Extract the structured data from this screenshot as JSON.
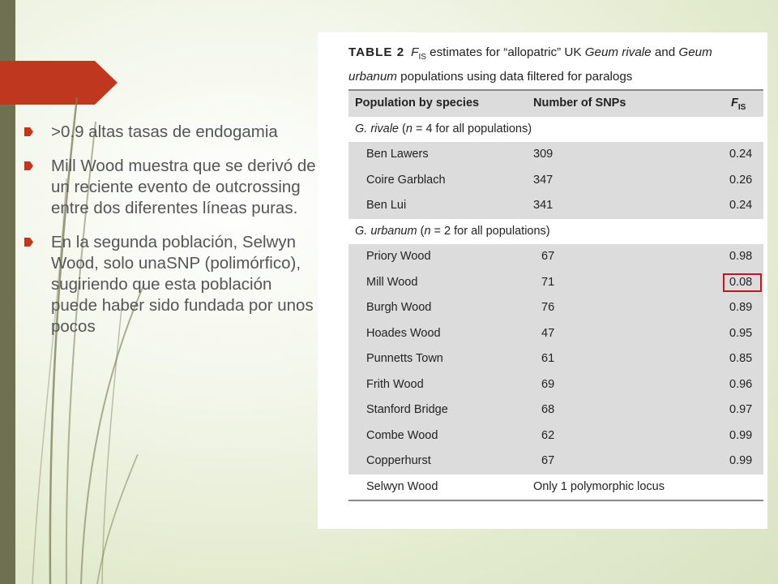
{
  "slide": {
    "accent_color": "#c0371f",
    "bar_color": "#6f6f52",
    "bullet_icon": "arrow-bullet-icon",
    "bullets": [
      ">0.9 altas tasas de endogamia",
      "Mill Wood muestra que se derivó de un reciente evento de outcrossing entre dos diferentes líneas puras.",
      "En la segunda población, Selwyn Wood, solo unaSNP (polimórfico), sugiriendo que esta población puede haber sido fundada por unos pocos"
    ]
  },
  "table": {
    "label": "TABLE 2",
    "caption": {
      "f": "F",
      "sub": "IS",
      "t1": " estimates for “allopatric” UK ",
      "sp1": "Geum rivale",
      "t2": " and ",
      "sp2": "Geum urbanum",
      "t3": " populations using data filtered for paralogs"
    },
    "headers": {
      "population": "Population by species",
      "snps": "Number of SNPs",
      "fis": "F",
      "fis_sub": "IS"
    },
    "groups": [
      {
        "sp": "G. rivale",
        "note_pre": " (",
        "n": "n",
        "note_post": " = 4 for all populations)",
        "rows": [
          {
            "population": "Ben Lawers",
            "snps": "309",
            "fis": "0.24"
          },
          {
            "population": "Coire Garblach",
            "snps": "347",
            "fis": "0.26"
          },
          {
            "population": "Ben Lui",
            "snps": "341",
            "fis": "0.24"
          }
        ]
      },
      {
        "sp": "G. urbanum",
        "note_pre": " (",
        "n": "n",
        "note_post": " = 2 for all populations)",
        "rows": [
          {
            "population": "Priory Wood",
            "snps": "67",
            "fis": "0.98"
          },
          {
            "population": "Mill Wood",
            "snps": "71",
            "fis": "0.08"
          },
          {
            "population": "Burgh Wood",
            "snps": "76",
            "fis": "0.89"
          },
          {
            "population": "Hoades Wood",
            "snps": "47",
            "fis": "0.95"
          },
          {
            "population": "Punnetts Town",
            "snps": "61",
            "fis": "0.85"
          },
          {
            "population": "Frith Wood",
            "snps": "69",
            "fis": "0.96"
          },
          {
            "population": "Stanford Bridge",
            "snps": "68",
            "fis": "0.97"
          },
          {
            "population": "Combe Wood",
            "snps": "62",
            "fis": "0.99"
          },
          {
            "population": "Copperhurst",
            "snps": "67",
            "fis": "0.99"
          },
          {
            "population": "Selwyn Wood",
            "snps": "Only 1 polymorphic locus",
            "fis": ""
          }
        ]
      }
    ]
  }
}
